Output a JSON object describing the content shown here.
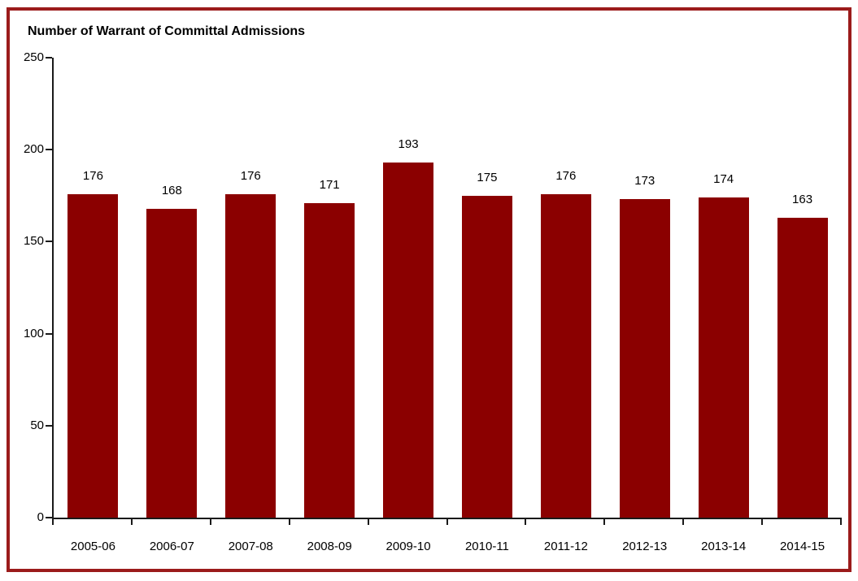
{
  "page": {
    "background": "#ffffff",
    "frame_border_color": "#9B1B1B"
  },
  "chart_data": {
    "type": "bar",
    "title": "Number of Warrant of Committal Admissions",
    "categories": [
      "2005-06",
      "2006-07",
      "2007-08",
      "2008-09",
      "2009-10",
      "2010-11",
      "2011-12",
      "2012-13",
      "2013-14",
      "2014-15"
    ],
    "values": [
      176,
      168,
      176,
      171,
      193,
      175,
      176,
      173,
      174,
      163
    ],
    "xlabel": "",
    "ylabel": "",
    "ylim": [
      0,
      250
    ],
    "yticks": [
      0,
      50,
      100,
      150,
      200,
      250
    ],
    "bar_color": "#8B0000",
    "axis_color": "#1a1a1a",
    "text_color": "#000000",
    "grid": false,
    "legend": "none",
    "data_labels": true
  }
}
